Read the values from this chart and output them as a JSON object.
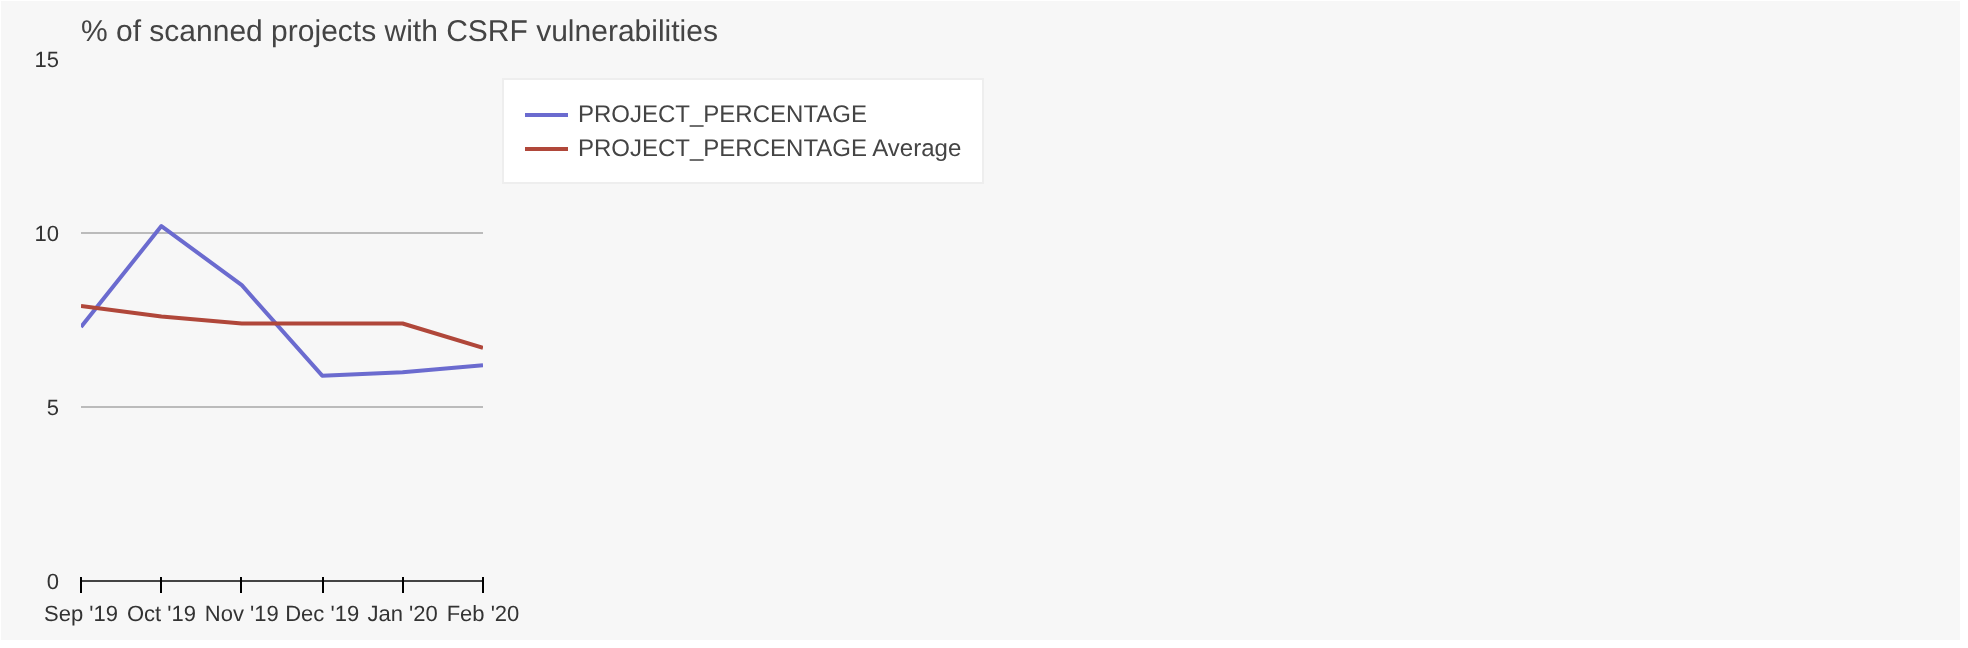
{
  "chart_data": {
    "type": "line",
    "title": "% of scanned projects with CSRF vulnerabilities",
    "categories": [
      "Sep '19",
      "Oct '19",
      "Nov '19",
      "Dec '19",
      "Jan '20",
      "Feb '20"
    ],
    "series": [
      {
        "name": "PROJECT_PERCENTAGE",
        "color": "#6b6bcf",
        "values": [
          7.3,
          10.2,
          8.5,
          5.9,
          6.0,
          6.2
        ]
      },
      {
        "name": "PROJECT_PERCENTAGE Average",
        "color": "#b0473a",
        "values": [
          7.9,
          7.6,
          7.4,
          7.4,
          7.4,
          6.7
        ]
      }
    ],
    "ylim": [
      0,
      15
    ],
    "yticks": [
      0,
      5,
      10,
      15
    ],
    "grid": "y",
    "legend": "top right",
    "marker": "none",
    "line_style": "solid"
  }
}
